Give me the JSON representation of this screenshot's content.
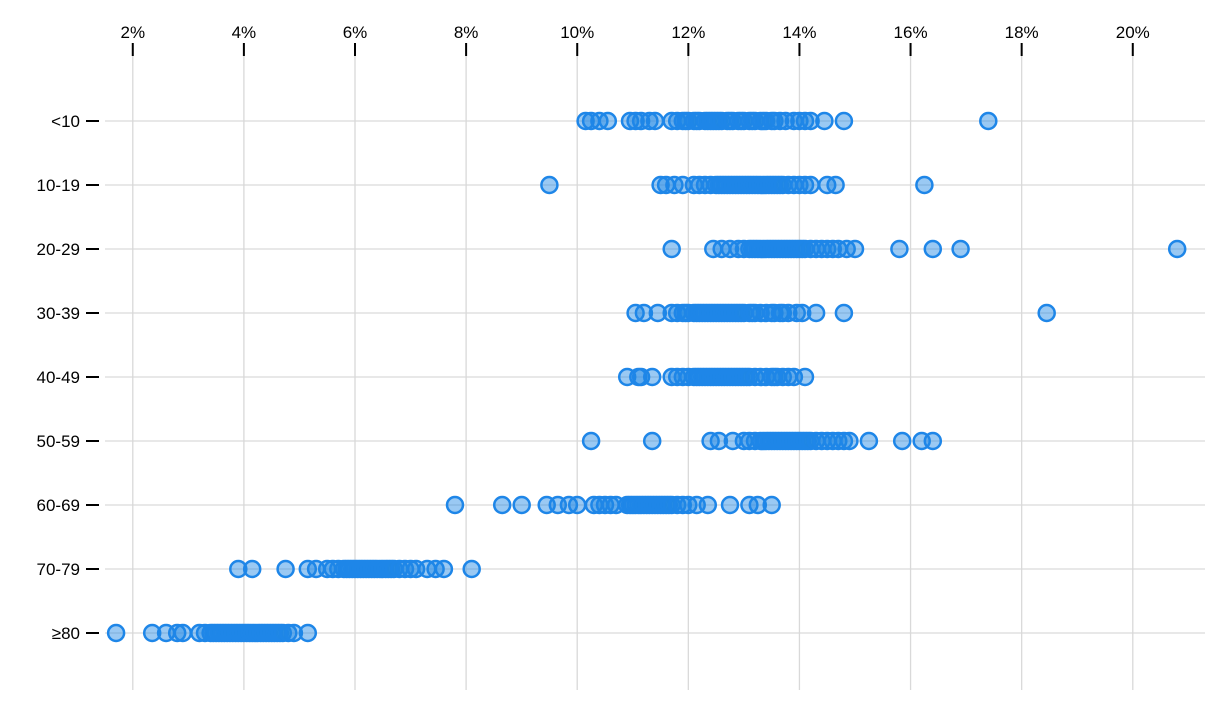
{
  "chart_data": {
    "type": "scatter",
    "variant": "strip-plot",
    "title": "",
    "subtitle": "",
    "xlabel": "",
    "ylabel": "",
    "legend": false,
    "grid": true,
    "background": "#ffffff",
    "x_axis": {
      "position": "top",
      "unit": "%",
      "range": [
        1.5,
        21.3
      ],
      "tick_values": [
        2,
        4,
        6,
        8,
        10,
        12,
        14,
        16,
        18,
        20
      ],
      "tick_labels": [
        "2%",
        "4%",
        "6%",
        "8%",
        "10%",
        "12%",
        "14%",
        "16%",
        "18%",
        "20%"
      ]
    },
    "y_axis": {
      "categories": [
        "<10",
        "10-19",
        "20-29",
        "30-39",
        "40-49",
        "50-59",
        "60-69",
        "70-79",
        "≥80"
      ]
    },
    "point_style": {
      "fill": "#1e88e5",
      "fill_opacity": 0.45,
      "stroke": "#1e86e8",
      "stroke_width": 2.5,
      "radius_px": 8
    },
    "colors": {
      "grid": "#d9d9d9",
      "tick": "#000000",
      "axis_text": "#000000",
      "point_blue": "#1e88e5"
    },
    "series": [
      {
        "category": "<10",
        "values": [
          10.15,
          10.25,
          10.4,
          10.55,
          10.95,
          11.05,
          11.15,
          11.3,
          11.4,
          11.7,
          11.8,
          11.9,
          11.95,
          12.0,
          12.1,
          12.15,
          12.2,
          12.3,
          12.35,
          12.4,
          12.45,
          12.5,
          12.55,
          12.6,
          12.7,
          12.75,
          12.8,
          12.9,
          12.95,
          13.0,
          13.1,
          13.15,
          13.2,
          13.3,
          13.35,
          13.4,
          13.5,
          13.55,
          13.65,
          13.75,
          13.9,
          14.0,
          14.1,
          14.2,
          14.45,
          14.8,
          17.4
        ]
      },
      {
        "category": "10-19",
        "values": [
          9.5,
          11.5,
          11.6,
          11.75,
          11.9,
          12.1,
          12.2,
          12.3,
          12.4,
          12.5,
          12.55,
          12.6,
          12.65,
          12.7,
          12.75,
          12.8,
          12.85,
          12.9,
          12.95,
          13.0,
          13.05,
          13.1,
          13.15,
          13.2,
          13.25,
          13.3,
          13.35,
          13.4,
          13.45,
          13.5,
          13.55,
          13.6,
          13.65,
          13.7,
          13.8,
          13.9,
          14.0,
          14.1,
          14.2,
          14.5,
          14.65,
          16.25
        ]
      },
      {
        "category": "20-29",
        "values": [
          11.7,
          12.45,
          12.6,
          12.75,
          12.9,
          13.0,
          13.1,
          13.15,
          13.2,
          13.25,
          13.3,
          13.35,
          13.4,
          13.45,
          13.5,
          13.55,
          13.6,
          13.65,
          13.7,
          13.75,
          13.8,
          13.85,
          13.9,
          13.95,
          14.0,
          14.05,
          14.1,
          14.2,
          14.3,
          14.4,
          14.5,
          14.6,
          14.7,
          14.85,
          15.0,
          15.8,
          16.4,
          16.9,
          20.8
        ]
      },
      {
        "category": "30-39",
        "values": [
          11.05,
          11.2,
          11.45,
          11.7,
          11.8,
          11.9,
          11.95,
          12.0,
          12.1,
          12.15,
          12.2,
          12.25,
          12.3,
          12.35,
          12.4,
          12.45,
          12.5,
          12.55,
          12.6,
          12.65,
          12.7,
          12.75,
          12.8,
          12.85,
          12.9,
          12.95,
          13.0,
          13.1,
          13.15,
          13.2,
          13.3,
          13.4,
          13.5,
          13.55,
          13.65,
          13.7,
          13.8,
          13.95,
          14.05,
          14.3,
          14.8,
          18.45
        ]
      },
      {
        "category": "40-49",
        "values": [
          10.9,
          11.1,
          11.15,
          11.35,
          11.7,
          11.8,
          11.9,
          12.0,
          12.1,
          12.15,
          12.2,
          12.25,
          12.3,
          12.35,
          12.4,
          12.45,
          12.5,
          12.55,
          12.6,
          12.65,
          12.7,
          12.75,
          12.8,
          12.85,
          12.9,
          12.95,
          13.0,
          13.05,
          13.1,
          13.2,
          13.3,
          13.4,
          13.5,
          13.55,
          13.6,
          13.7,
          13.8,
          13.9,
          14.1
        ]
      },
      {
        "category": "50-59",
        "values": [
          10.25,
          11.35,
          12.4,
          12.55,
          12.8,
          13.0,
          13.1,
          13.2,
          13.3,
          13.35,
          13.4,
          13.45,
          13.5,
          13.55,
          13.6,
          13.65,
          13.7,
          13.75,
          13.8,
          13.85,
          13.9,
          13.95,
          14.0,
          14.05,
          14.1,
          14.15,
          14.2,
          14.3,
          14.4,
          14.5,
          14.6,
          14.7,
          14.8,
          14.9,
          15.25,
          15.85,
          16.2,
          16.4
        ]
      },
      {
        "category": "60-69",
        "values": [
          7.8,
          8.65,
          9.0,
          9.45,
          9.65,
          9.85,
          10.0,
          10.3,
          10.4,
          10.5,
          10.6,
          10.7,
          10.9,
          10.95,
          11.0,
          11.05,
          11.1,
          11.15,
          11.2,
          11.25,
          11.3,
          11.35,
          11.4,
          11.45,
          11.5,
          11.55,
          11.6,
          11.65,
          11.7,
          11.8,
          11.9,
          12.0,
          12.15,
          12.35,
          12.75,
          13.1,
          13.25,
          13.5
        ]
      },
      {
        "category": "70-79",
        "values": [
          3.9,
          4.15,
          4.75,
          5.15,
          5.3,
          5.5,
          5.6,
          5.7,
          5.8,
          5.85,
          5.9,
          5.95,
          6.0,
          6.05,
          6.1,
          6.15,
          6.2,
          6.25,
          6.3,
          6.35,
          6.4,
          6.45,
          6.5,
          6.55,
          6.6,
          6.65,
          6.7,
          6.8,
          6.9,
          7.0,
          7.1,
          7.3,
          7.45,
          7.6,
          8.1
        ]
      },
      {
        "category": "≥80",
        "values": [
          1.7,
          2.35,
          2.6,
          2.8,
          2.9,
          3.2,
          3.3,
          3.4,
          3.45,
          3.5,
          3.55,
          3.6,
          3.65,
          3.7,
          3.75,
          3.8,
          3.85,
          3.9,
          3.95,
          4.0,
          4.05,
          4.1,
          4.15,
          4.2,
          4.25,
          4.3,
          4.35,
          4.4,
          4.45,
          4.5,
          4.55,
          4.6,
          4.65,
          4.7,
          4.8,
          4.9,
          5.15
        ]
      }
    ]
  }
}
